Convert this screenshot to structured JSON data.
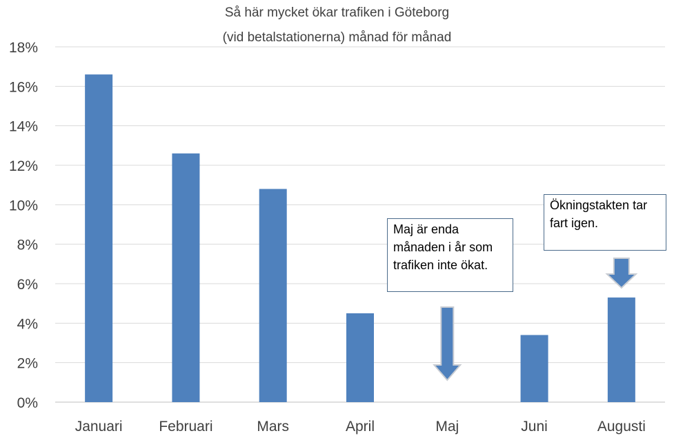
{
  "chart_data": {
    "type": "bar",
    "title": "Så här mycket ökar trafiken i Göteborg",
    "subtitle": "(vid betalstationerna) månad för månad",
    "categories": [
      "Januari",
      "Februari",
      "Mars",
      "April",
      "Maj",
      "Juni",
      "Augusti"
    ],
    "values": [
      16.6,
      12.6,
      10.8,
      4.5,
      0,
      3.4,
      5.3
    ],
    "ylim": [
      0,
      18
    ],
    "yticks": [
      "0%",
      "2%",
      "4%",
      "6%",
      "8%",
      "10%",
      "12%",
      "14%",
      "16%",
      "18%"
    ],
    "grid": true,
    "bar_color": "#4f81bd",
    "annotations": [
      {
        "text": "Maj är enda månaden i år som trafiken inte ökat.",
        "target": "Maj"
      },
      {
        "text": "Ökningstakten tar fart igen.",
        "target": "Augusti"
      }
    ]
  }
}
